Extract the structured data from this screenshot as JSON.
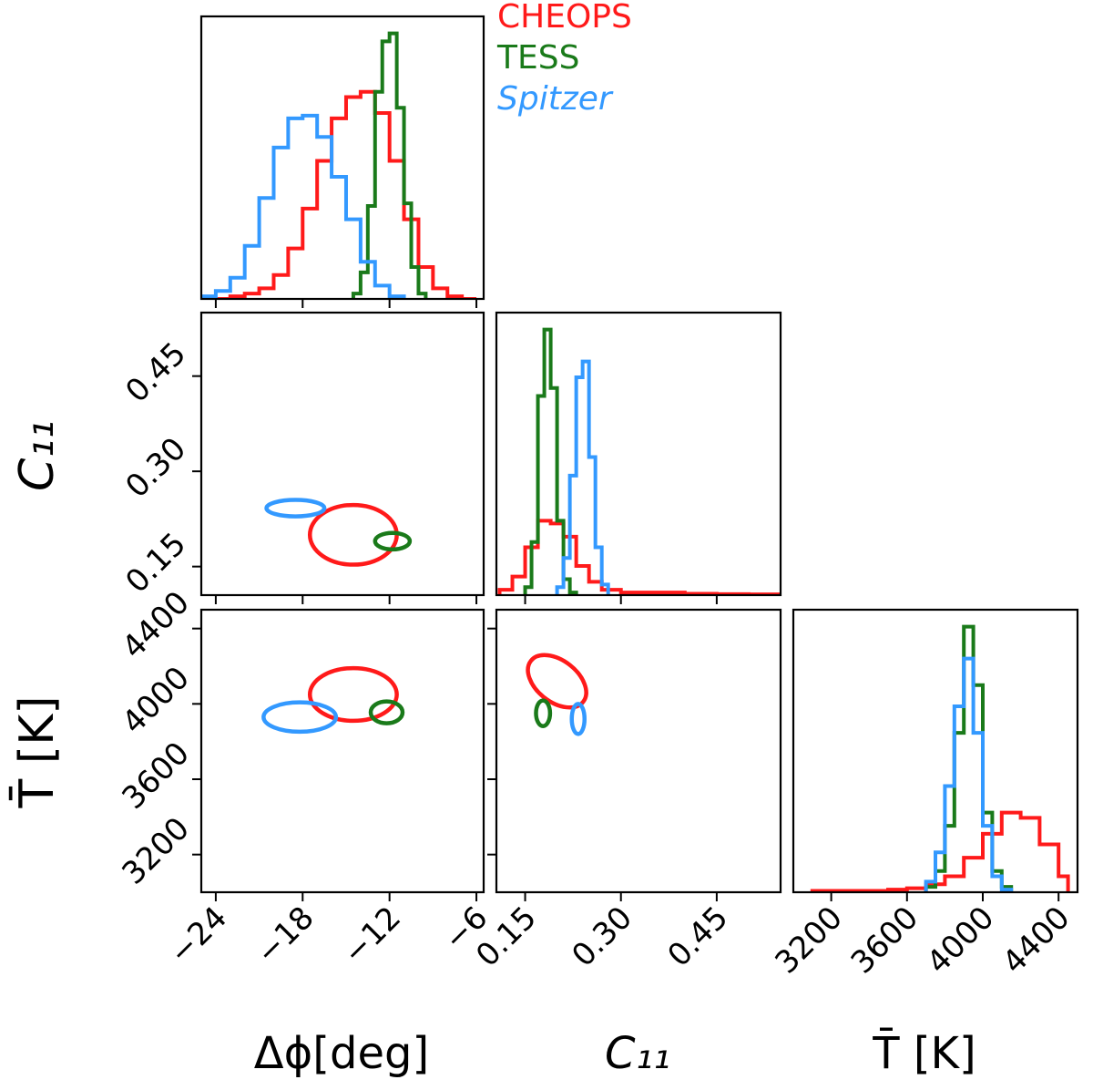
{
  "colors": {
    "CHEOPS": "#ff1a1a",
    "TESS": "#1a7a1a",
    "Spitzer": "#3399ff",
    "frame": "#000000"
  },
  "legend": [
    {
      "label": "CHEOPS",
      "color": "#ff1a1a",
      "italic": false
    },
    {
      "label": "TESS",
      "color": "#1a7a1a",
      "italic": false
    },
    {
      "label": "Spitzer",
      "color": "#3399ff",
      "italic": true
    }
  ],
  "axis_labels": {
    "dphi": "Δϕ[deg]",
    "c11": "C₁₁",
    "tbar": "T̄ [K]"
  },
  "chart_data": {
    "type": "corner",
    "parameters": [
      {
        "key": "dphi",
        "label": "Δϕ[deg]",
        "range": [
          -25,
          -5.5
        ],
        "ticks": [
          -24,
          -18,
          -12,
          -6
        ],
        "tick_labels": [
          "−24",
          "−18",
          "−12",
          "−6"
        ]
      },
      {
        "key": "c11",
        "label": "C₁₁",
        "range": [
          0.105,
          0.55
        ],
        "ticks": [
          0.15,
          0.3,
          0.45
        ],
        "tick_labels": [
          "0.15",
          "0.30",
          "0.45"
        ]
      },
      {
        "key": "tbar",
        "label": "T̄ [K]",
        "range": [
          3000,
          4500
        ],
        "ticks": [
          3200,
          3600,
          4000,
          4400
        ],
        "tick_labels": [
          "3200",
          "3600",
          "4000",
          "4400"
        ]
      }
    ],
    "histograms": {
      "dphi": {
        "CHEOPS": {
          "edges": [
            -24,
            -23,
            -22,
            -21,
            -20,
            -19,
            -18,
            -17,
            -16,
            -15,
            -14,
            -13,
            -12,
            -11,
            -10,
            -9,
            -8,
            -7,
            -6
          ],
          "counts": [
            0,
            1,
            2,
            4,
            9,
            19,
            34,
            52,
            68,
            76,
            78,
            70,
            52,
            30,
            12,
            4,
            1,
            0
          ]
        },
        "TESS": {
          "edges": [
            -14.5,
            -14.0,
            -13.5,
            -13.0,
            -12.5,
            -12.0,
            -11.5,
            -11.0,
            -10.5,
            -10.0,
            -9.5
          ],
          "counts": [
            2,
            10,
            35,
            78,
            97,
            100,
            72,
            36,
            12,
            2
          ]
        },
        "Spitzer": {
          "edges": [
            -25,
            -24,
            -23,
            -22,
            -21,
            -20,
            -19,
            -18,
            -17,
            -16,
            -15,
            -14,
            -13,
            -12,
            -11
          ],
          "counts": [
            1,
            3,
            8,
            20,
            38,
            57,
            68,
            69,
            61,
            46,
            30,
            14,
            5,
            1
          ]
        }
      },
      "c11": {
        "CHEOPS": {
          "edges": [
            0.11,
            0.13,
            0.15,
            0.17,
            0.19,
            0.21,
            0.23,
            0.25,
            0.27,
            0.3,
            0.35,
            0.4,
            0.45,
            0.5,
            0.55
          ],
          "counts": [
            2,
            7,
            18,
            28,
            27,
            22,
            11,
            5,
            2,
            1,
            1,
            0.5,
            0.4,
            0.3
          ]
        },
        "TESS": {
          "edges": [
            0.15,
            0.16,
            0.17,
            0.18,
            0.19,
            0.2,
            0.21,
            0.22,
            0.23
          ],
          "counts": [
            3,
            20,
            75,
            100,
            78,
            28,
            6,
            1
          ]
        },
        "Spitzer": {
          "edges": [
            0.2,
            0.21,
            0.22,
            0.23,
            0.24,
            0.25,
            0.26,
            0.27,
            0.28
          ],
          "counts": [
            3,
            14,
            45,
            82,
            88,
            52,
            18,
            4
          ]
        }
      },
      "tbar": {
        "CHEOPS": {
          "edges": [
            3100,
            3200,
            3300,
            3400,
            3500,
            3600,
            3700,
            3800,
            3900,
            4000,
            4100,
            4200,
            4300,
            4400,
            4450
          ],
          "counts": [
            0.5,
            0.5,
            0.5,
            0.5,
            1,
            1.5,
            3,
            6,
            13,
            22,
            30,
            28,
            18,
            6
          ]
        },
        "TESS": {
          "edges": [
            3700,
            3750,
            3800,
            3850,
            3900,
            3950,
            4000,
            4050,
            4100,
            4150
          ],
          "counts": [
            2,
            8,
            25,
            60,
            100,
            78,
            30,
            8,
            2
          ]
        },
        "Spitzer": {
          "edges": [
            3700,
            3750,
            3800,
            3850,
            3900,
            3950,
            4000,
            4050,
            4100,
            4150
          ],
          "counts": [
            4,
            15,
            40,
            70,
            88,
            60,
            25,
            6,
            1
          ]
        }
      }
    },
    "contours": {
      "c11_vs_dphi": {
        "CHEOPS": {
          "center": [
            -14.5,
            0.2
          ],
          "semi": [
            3.0,
            0.047
          ],
          "angle": 0
        },
        "TESS": {
          "center": [
            -11.8,
            0.19
          ],
          "semi": [
            1.2,
            0.013
          ],
          "angle": 0
        },
        "Spitzer": {
          "center": [
            -18.5,
            0.242
          ],
          "semi": [
            2.0,
            0.013
          ],
          "angle": 0
        }
      },
      "tbar_vs_dphi": {
        "CHEOPS": {
          "center": [
            -14.5,
            4050
          ],
          "semi": [
            3.0,
            140
          ],
          "angle": 0
        },
        "TESS": {
          "center": [
            -12.2,
            3955
          ],
          "semi": [
            1.1,
            58
          ],
          "angle": 0
        },
        "Spitzer": {
          "center": [
            -18.2,
            3930
          ],
          "semi": [
            2.5,
            78
          ],
          "angle": 0
        }
      },
      "tbar_vs_c11": {
        "CHEOPS": {
          "center": [
            0.2,
            4120
          ],
          "semi": [
            0.052,
            110
          ],
          "angle": 38
        },
        "TESS": {
          "center": [
            0.178,
            3950
          ],
          "semi": [
            0.011,
            68
          ],
          "angle": 0
        },
        "Spitzer": {
          "center": [
            0.233,
            3920
          ],
          "semi": [
            0.01,
            80
          ],
          "angle": 0
        }
      }
    },
    "grid": false,
    "legend_position": "top, right of first histogram"
  }
}
